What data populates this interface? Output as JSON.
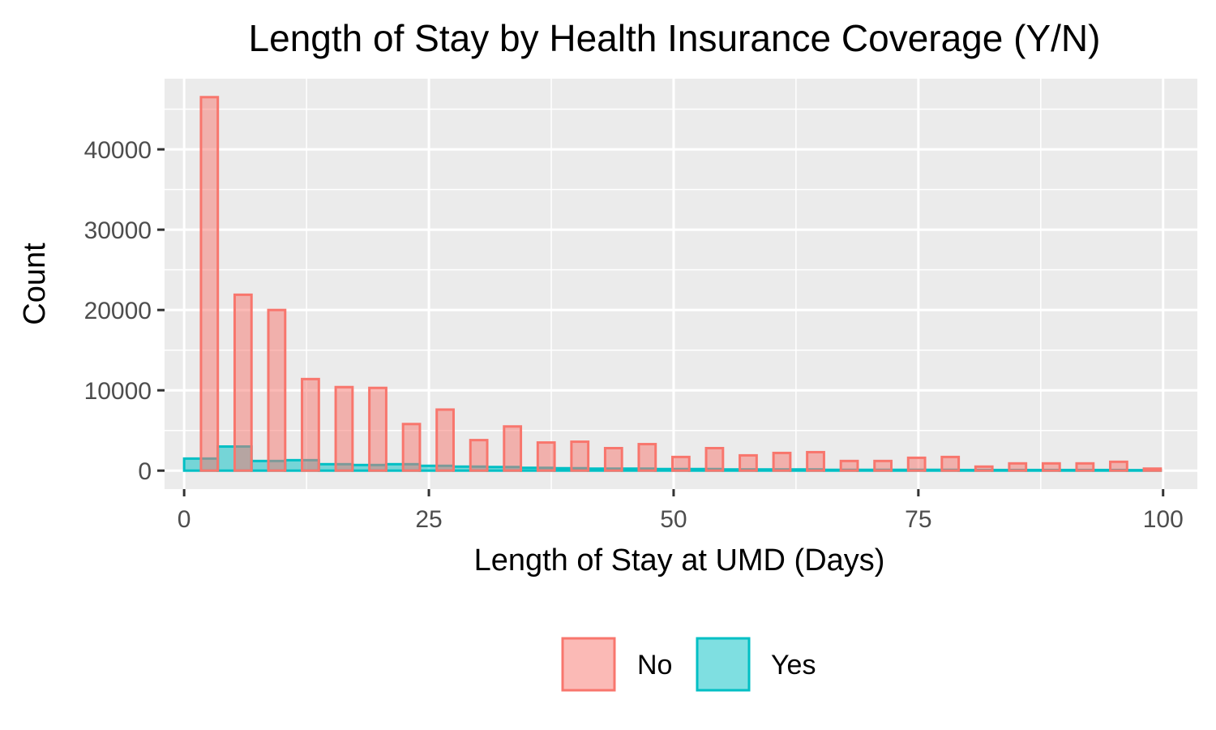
{
  "chart_data": {
    "type": "bar",
    "title": "Length of Stay by Health Insurance Coverage (Y/N)",
    "xlabel": "Length of Stay at UMD (Days)",
    "ylabel": "Count",
    "xlim": [
      -2.0,
      103.5
    ],
    "ylim": [
      -2300,
      48800
    ],
    "x_ticks": [
      0,
      25,
      50,
      75,
      100
    ],
    "y_ticks": [
      0,
      10000,
      20000,
      30000,
      40000
    ],
    "x_tick_labels": [
      "0",
      "25",
      "50",
      "75",
      "100"
    ],
    "y_tick_labels": [
      "0",
      "10000",
      "20000",
      "30000",
      "40000"
    ],
    "bin_width": 3.44,
    "legend_position": "bottom",
    "grid": true,
    "series": [
      {
        "name": "Yes",
        "fill": "#00BFC4",
        "stroke": "#00BFC4",
        "fill_opacity": 0.5,
        "bins": [
          {
            "x0": 0.0,
            "x1": 3.44,
            "value": 1500
          },
          {
            "x0": 3.44,
            "x1": 6.88,
            "value": 3000
          },
          {
            "x0": 6.88,
            "x1": 10.32,
            "value": 1200
          },
          {
            "x0": 10.32,
            "x1": 13.76,
            "value": 1300
          },
          {
            "x0": 13.76,
            "x1": 17.2,
            "value": 800
          },
          {
            "x0": 17.2,
            "x1": 20.64,
            "value": 700
          },
          {
            "x0": 20.64,
            "x1": 24.08,
            "value": 800
          },
          {
            "x0": 24.08,
            "x1": 27.52,
            "value": 600
          },
          {
            "x0": 27.52,
            "x1": 30.96,
            "value": 500
          },
          {
            "x0": 30.96,
            "x1": 34.4,
            "value": 450
          },
          {
            "x0": 34.4,
            "x1": 37.84,
            "value": 350
          },
          {
            "x0": 37.84,
            "x1": 41.28,
            "value": 300
          },
          {
            "x0": 41.28,
            "x1": 44.72,
            "value": 250
          },
          {
            "x0": 44.72,
            "x1": 48.16,
            "value": 250
          },
          {
            "x0": 48.16,
            "x1": 51.6,
            "value": 200
          },
          {
            "x0": 51.6,
            "x1": 55.04,
            "value": 200
          },
          {
            "x0": 55.04,
            "x1": 58.48,
            "value": 150
          },
          {
            "x0": 58.48,
            "x1": 61.92,
            "value": 150
          },
          {
            "x0": 61.92,
            "x1": 65.36,
            "value": 150
          },
          {
            "x0": 65.36,
            "x1": 68.8,
            "value": 100
          },
          {
            "x0": 68.8,
            "x1": 72.24,
            "value": 100
          },
          {
            "x0": 72.24,
            "x1": 75.68,
            "value": 100
          },
          {
            "x0": 75.68,
            "x1": 79.12,
            "value": 100
          },
          {
            "x0": 79.12,
            "x1": 82.56,
            "value": 80
          },
          {
            "x0": 82.56,
            "x1": 86.0,
            "value": 80
          },
          {
            "x0": 86.0,
            "x1": 89.44,
            "value": 80
          },
          {
            "x0": 89.44,
            "x1": 92.88,
            "value": 80
          },
          {
            "x0": 92.88,
            "x1": 96.32,
            "value": 80
          },
          {
            "x0": 96.32,
            "x1": 99.76,
            "value": 60
          }
        ]
      },
      {
        "name": "No",
        "fill": "#F8766D",
        "stroke": "#F8766D",
        "fill_opacity": 0.5,
        "bins": [
          {
            "x0": 1.72,
            "x1": 3.44,
            "value": 46500
          },
          {
            "x0": 5.16,
            "x1": 6.88,
            "value": 21900
          },
          {
            "x0": 8.6,
            "x1": 10.32,
            "value": 20000
          },
          {
            "x0": 12.04,
            "x1": 13.76,
            "value": 11400
          },
          {
            "x0": 15.48,
            "x1": 17.2,
            "value": 10400
          },
          {
            "x0": 18.92,
            "x1": 20.64,
            "value": 10300
          },
          {
            "x0": 22.36,
            "x1": 24.08,
            "value": 5800
          },
          {
            "x0": 25.8,
            "x1": 27.52,
            "value": 7600
          },
          {
            "x0": 29.24,
            "x1": 30.96,
            "value": 3800
          },
          {
            "x0": 32.68,
            "x1": 34.4,
            "value": 5500
          },
          {
            "x0": 36.12,
            "x1": 37.84,
            "value": 3500
          },
          {
            "x0": 39.56,
            "x1": 41.28,
            "value": 3600
          },
          {
            "x0": 43.0,
            "x1": 44.72,
            "value": 2800
          },
          {
            "x0": 46.44,
            "x1": 48.16,
            "value": 3300
          },
          {
            "x0": 49.88,
            "x1": 51.6,
            "value": 1700
          },
          {
            "x0": 53.32,
            "x1": 55.04,
            "value": 2800
          },
          {
            "x0": 56.76,
            "x1": 58.48,
            "value": 1900
          },
          {
            "x0": 60.2,
            "x1": 61.92,
            "value": 2200
          },
          {
            "x0": 63.64,
            "x1": 65.36,
            "value": 2300
          },
          {
            "x0": 67.08,
            "x1": 68.8,
            "value": 1200
          },
          {
            "x0": 70.52,
            "x1": 72.24,
            "value": 1200
          },
          {
            "x0": 73.96,
            "x1": 75.68,
            "value": 1600
          },
          {
            "x0": 77.4,
            "x1": 79.12,
            "value": 1700
          },
          {
            "x0": 80.84,
            "x1": 82.56,
            "value": 500
          },
          {
            "x0": 84.28,
            "x1": 86.0,
            "value": 900
          },
          {
            "x0": 87.72,
            "x1": 89.44,
            "value": 900
          },
          {
            "x0": 91.16,
            "x1": 92.88,
            "value": 900
          },
          {
            "x0": 94.6,
            "x1": 96.32,
            "value": 1100
          },
          {
            "x0": 98.04,
            "x1": 99.76,
            "value": 250
          }
        ]
      }
    ],
    "legend": [
      {
        "label": "No",
        "fill": "#F8766D",
        "stroke": "#F8766D"
      },
      {
        "label": "Yes",
        "fill": "#00BFC4",
        "stroke": "#00BFC4"
      }
    ],
    "colors": {
      "panel_background": "#EBEBEB",
      "grid_major": "#FFFFFF",
      "grid_minor": "#F5F5F5",
      "tick_color": "#333333"
    }
  }
}
